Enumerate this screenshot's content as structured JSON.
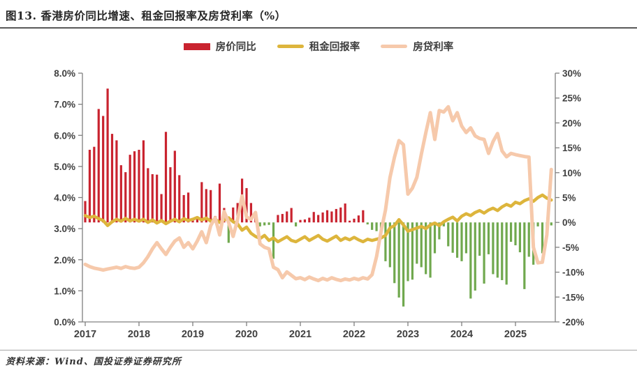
{
  "title": "图13. 香港房价同比增速、租金回报率及房贷利率（%）",
  "source": "资料来源：Wind、国投证券证券研究所",
  "legend": {
    "items": [
      {
        "label": "房价同比",
        "color": "#c9232f",
        "swatch": "bar"
      },
      {
        "label": "租金回报率",
        "color": "#ddb53c",
        "swatch": "line"
      },
      {
        "label": "房贷利率",
        "color": "#f6c9ab",
        "swatch": "line"
      }
    ]
  },
  "colors": {
    "bar_positive": "#c9232f",
    "bar_negative": "#70a84e",
    "rental_yield_line": "#ddb53c",
    "mortgage_rate_line": "#f6c9ab",
    "axis": "#808080",
    "axis_text": "#404040"
  },
  "chart_data": {
    "type": "bar+line combo, monthly Jan 2017 - Sep 2025",
    "title": "香港房价同比增速、租金回报率及房贷利率（%）",
    "start_year": 2017,
    "months_count": 105,
    "grid": "off",
    "legend_position": "top-center",
    "left_axis": {
      "min": 0,
      "max": 8,
      "ticks": [
        "8.0%",
        "7.0%",
        "6.0%",
        "5.0%",
        "4.0%",
        "3.0%",
        "2.0%",
        "1.0%",
        "0.0%"
      ]
    },
    "right_axis": {
      "min": -20,
      "max": 30,
      "ticks": [
        "30%",
        "25%",
        "20%",
        "15%",
        "10%",
        "5%",
        "0%",
        "-5%",
        "-10%",
        "-15%",
        "-20%"
      ]
    },
    "x_ticks": [
      "2017",
      "2018",
      "2019",
      "2020",
      "2021",
      "2022",
      "2023",
      "2024",
      "2025"
    ],
    "series": [
      {
        "name": "房价同比",
        "type": "bar",
        "axis": "right",
        "unit": "%",
        "values": [
          4.3,
          14.6,
          15.2,
          22.8,
          21.4,
          26.9,
          17.8,
          16.5,
          11.5,
          10.1,
          13.6,
          14.3,
          14.6,
          16.5,
          10.9,
          9.7,
          9.6,
          5.7,
          18.2,
          11.1,
          14.4,
          9.5,
          5.5,
          6.0,
          0.9,
          1.0,
          8.1,
          6.7,
          6.5,
          1.3,
          7.8,
          2.9,
          -4.1,
          3.0,
          3.9,
          8.8,
          6.9,
          3.9,
          1.0,
          -0.8,
          -0.6,
          -0.5,
          -7.3,
          1.5,
          1.7,
          2.2,
          2.9,
          -0.8,
          0.5,
          0.6,
          0.95,
          2.1,
          1.5,
          2.0,
          2.45,
          2.2,
          2.7,
          3.0,
          3.8,
          0.35,
          0.75,
          1.4,
          2.45,
          -0.4,
          -1.5,
          -1.75,
          -2.2,
          -7.8,
          -9.0,
          -12.2,
          -15.1,
          -16.9,
          -11.8,
          -11.5,
          -8.3,
          -9.0,
          -10.4,
          -11.1,
          -6.2,
          -3.4,
          -0.8,
          -4.8,
          -6.1,
          -7.1,
          -7.8,
          -6.2,
          -15.3,
          -13.7,
          -6.7,
          -12.3,
          -6.4,
          -10.4,
          -11.1,
          -11.6,
          -12.5,
          -3.9,
          -4.6,
          -6.0,
          -13.4,
          -6.9,
          -8.5,
          -0.8,
          -6.2,
          -1.5,
          -0.6
        ]
      },
      {
        "name": "租金回报率",
        "type": "line",
        "axis": "left",
        "unit": "%",
        "values": [
          3.42,
          3.36,
          3.4,
          3.32,
          3.26,
          3.1,
          3.22,
          3.3,
          3.24,
          3.33,
          3.25,
          3.3,
          3.24,
          3.3,
          3.2,
          3.28,
          3.18,
          3.26,
          3.16,
          3.24,
          3.3,
          3.22,
          3.32,
          3.26,
          3.3,
          3.36,
          3.28,
          3.34,
          3.24,
          3.3,
          3.2,
          3.28,
          3.35,
          3.22,
          3.15,
          2.95,
          3.05,
          2.85,
          2.75,
          2.68,
          2.78,
          2.62,
          2.7,
          2.58,
          2.66,
          2.74,
          2.62,
          2.58,
          2.66,
          2.74,
          2.62,
          2.7,
          2.78,
          2.66,
          2.6,
          2.68,
          2.76,
          2.62,
          2.7,
          2.64,
          2.72,
          2.64,
          2.58,
          2.66,
          2.62,
          2.66,
          2.7,
          2.78,
          3.02,
          3.1,
          3.29,
          3.12,
          2.92,
          2.97,
          3.02,
          3.07,
          3.0,
          3.12,
          3.18,
          3.1,
          3.22,
          3.3,
          3.37,
          3.25,
          3.4,
          3.48,
          3.42,
          3.52,
          3.58,
          3.5,
          3.6,
          3.66,
          3.58,
          3.7,
          3.78,
          3.72,
          3.85,
          3.8,
          3.9,
          3.96,
          3.88,
          4.0,
          4.08,
          3.98,
          3.92
        ]
      },
      {
        "name": "房贷利率",
        "type": "line",
        "axis": "left",
        "unit": "%",
        "values": [
          1.85,
          1.78,
          1.73,
          1.7,
          1.67,
          1.7,
          1.73,
          1.76,
          1.72,
          1.78,
          1.74,
          1.72,
          1.76,
          1.9,
          2.1,
          2.35,
          2.55,
          2.35,
          2.17,
          2.4,
          2.6,
          2.7,
          2.4,
          2.55,
          2.35,
          2.6,
          2.9,
          2.55,
          3.1,
          3.35,
          2.8,
          3.55,
          3.2,
          2.75,
          3.3,
          4.05,
          3.37,
          3.3,
          3.52,
          2.51,
          2.4,
          2.35,
          1.76,
          1.68,
          1.42,
          1.61,
          1.5,
          1.39,
          1.42,
          1.36,
          1.44,
          1.38,
          1.33,
          1.4,
          1.35,
          1.42,
          1.37,
          1.33,
          1.38,
          1.35,
          1.4,
          1.36,
          1.42,
          1.38,
          1.52,
          2.1,
          2.9,
          3.6,
          4.64,
          5.3,
          5.83,
          5.7,
          4.11,
          4.3,
          4.65,
          5.4,
          6.09,
          6.73,
          5.87,
          6.8,
          6.75,
          6.92,
          6.47,
          6.73,
          6.3,
          6.09,
          6.24,
          5.98,
          5.9,
          5.87,
          5.42,
          5.8,
          6.06,
          5.5,
          5.31,
          5.42,
          5.38,
          5.35,
          5.32,
          5.3,
          2.4,
          1.9,
          1.92,
          2.8,
          4.9
        ]
      }
    ]
  }
}
